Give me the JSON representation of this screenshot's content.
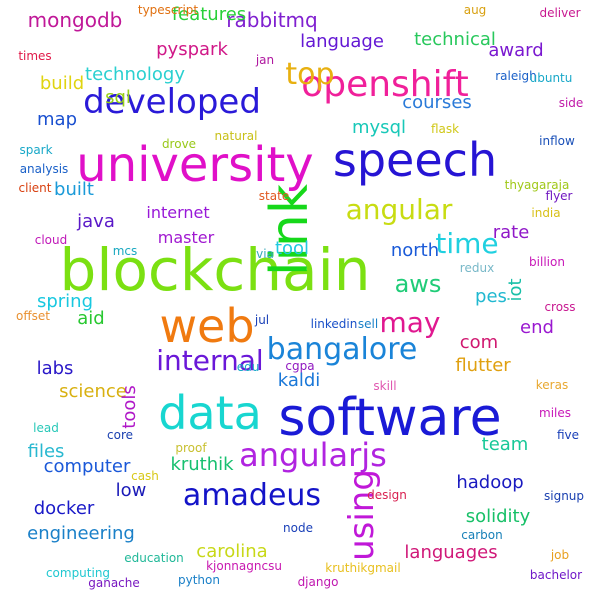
{
  "words": [
    {
      "text": "blockchain",
      "color": "#7be012"
    },
    {
      "text": "software",
      "color": "#1a1ad6"
    },
    {
      "text": "university",
      "color": "#e010c8"
    },
    {
      "text": "speech",
      "color": "#2614d4"
    },
    {
      "text": "link",
      "color": "#16d81a"
    },
    {
      "text": "data",
      "color": "#18d6d0"
    },
    {
      "text": "web",
      "color": "#f07a10"
    },
    {
      "text": "openshift",
      "color": "#f0209a"
    },
    {
      "text": "developed",
      "color": "#2a1ad8"
    },
    {
      "text": "angularjs",
      "color": "#b024e0"
    },
    {
      "text": "bangalore",
      "color": "#1a84d8"
    },
    {
      "text": "angular",
      "color": "#c8dc12"
    },
    {
      "text": "amadeus",
      "color": "#1414c8"
    },
    {
      "text": "internal",
      "color": "#6a18d8"
    },
    {
      "text": "may",
      "color": "#e01890"
    },
    {
      "text": "top",
      "color": "#e8b010"
    },
    {
      "text": "time",
      "color": "#20d0e0"
    },
    {
      "text": "using",
      "color": "#c018d8"
    },
    {
      "text": "aws",
      "color": "#20cc78"
    },
    {
      "text": "mongodb",
      "color": "#c01898"
    },
    {
      "text": "rabbitmq",
      "color": "#8020d0"
    },
    {
      "text": "features",
      "color": "#28d038"
    },
    {
      "text": "language",
      "color": "#6418d4"
    },
    {
      "text": "technical",
      "color": "#28c85c"
    },
    {
      "text": "award",
      "color": "#7a18d0"
    },
    {
      "text": "pyspark",
      "color": "#d01888"
    },
    {
      "text": "technology",
      "color": "#2ad0d0"
    },
    {
      "text": "build",
      "color": "#e0d410"
    },
    {
      "text": "sql",
      "color": "#98d018"
    },
    {
      "text": "map",
      "color": "#1a50d0"
    },
    {
      "text": "mysql",
      "color": "#18c8b8"
    },
    {
      "text": "courses",
      "color": "#2a7ad8"
    },
    {
      "text": "built",
      "color": "#1a9ad8"
    },
    {
      "text": "java",
      "color": "#5a18c8"
    },
    {
      "text": "internet",
      "color": "#9818d8"
    },
    {
      "text": "master",
      "color": "#a018d0"
    },
    {
      "text": "tool",
      "color": "#20c8e0"
    },
    {
      "text": "north",
      "color": "#1a5ad8"
    },
    {
      "text": "rate",
      "color": "#9018c8"
    },
    {
      "text": "iot",
      "color": "#18c0a8"
    },
    {
      "text": "pes",
      "color": "#20b8d0"
    },
    {
      "text": "spring",
      "color": "#18c8e0"
    },
    {
      "text": "aid",
      "color": "#28c830"
    },
    {
      "text": "end",
      "color": "#9a18d0"
    },
    {
      "text": "com",
      "color": "#d01870"
    },
    {
      "text": "labs",
      "color": "#2a18c8"
    },
    {
      "text": "kaldi",
      "color": "#1a78d8"
    },
    {
      "text": "flutter",
      "color": "#e0a010"
    },
    {
      "text": "science",
      "color": "#d8b010"
    },
    {
      "text": "tools",
      "color": "#b018c8"
    },
    {
      "text": "files",
      "color": "#28b8d0"
    },
    {
      "text": "computer",
      "color": "#1a58d8"
    },
    {
      "text": "kruthik",
      "color": "#18c070"
    },
    {
      "text": "team",
      "color": "#18c898"
    },
    {
      "text": "hadoop",
      "color": "#1a1ac0"
    },
    {
      "text": "low",
      "color": "#1a1ab8"
    },
    {
      "text": "docker",
      "color": "#1a1ac8"
    },
    {
      "text": "carolina",
      "color": "#c8d818"
    },
    {
      "text": "solidity",
      "color": "#18c068"
    },
    {
      "text": "engineering",
      "color": "#1a80c8"
    },
    {
      "text": "languages",
      "color": "#d01878"
    },
    {
      "text": "typescript",
      "color": "#e07010"
    },
    {
      "text": "aug",
      "color": "#d8a010"
    },
    {
      "text": "deliver",
      "color": "#c81890"
    },
    {
      "text": "times",
      "color": "#e01848"
    },
    {
      "text": "jan",
      "color": "#b018a0"
    },
    {
      "text": "raleigh",
      "color": "#1a60c8"
    },
    {
      "text": "ubuntu",
      "color": "#18a8c8"
    },
    {
      "text": "side",
      "color": "#c018a8"
    },
    {
      "text": "inflow",
      "color": "#1a50b8"
    },
    {
      "text": "flask",
      "color": "#d0c818"
    },
    {
      "text": "spark",
      "color": "#18a8c8"
    },
    {
      "text": "analysis",
      "color": "#1a60c8"
    },
    {
      "text": "client",
      "color": "#d84010"
    },
    {
      "text": "drove",
      "color": "#98c818"
    },
    {
      "text": "natural",
      "color": "#c8c018"
    },
    {
      "text": "state",
      "color": "#e05820"
    },
    {
      "text": "thyagaraja",
      "color": "#a0c818"
    },
    {
      "text": "flyer",
      "color": "#7018c0"
    },
    {
      "text": "india",
      "color": "#d8c018"
    },
    {
      "text": "cloud",
      "color": "#c018b8"
    },
    {
      "text": "mcs",
      "color": "#18a8c0"
    },
    {
      "text": "via",
      "color": "#38a8b8"
    },
    {
      "text": "redux",
      "color": "#78b8c8"
    },
    {
      "text": "billion",
      "color": "#c818b8"
    },
    {
      "text": "cross",
      "color": "#c81890"
    },
    {
      "text": "offset",
      "color": "#e89030"
    },
    {
      "text": "jul",
      "color": "#1a40b8"
    },
    {
      "text": "linkedin",
      "color": "#1a50c8"
    },
    {
      "text": "sell",
      "color": "#1a80c8"
    },
    {
      "text": "edu",
      "color": "#18a8c8"
    },
    {
      "text": "cgpa",
      "color": "#9018c0"
    },
    {
      "text": "skill",
      "color": "#e058b0"
    },
    {
      "text": "keras",
      "color": "#e8a830"
    },
    {
      "text": "lead",
      "color": "#28c8b8"
    },
    {
      "text": "core",
      "color": "#1a40b0"
    },
    {
      "text": "proof",
      "color": "#c8c030"
    },
    {
      "text": "miles",
      "color": "#c818b8"
    },
    {
      "text": "five",
      "color": "#1a40b8"
    },
    {
      "text": "cash",
      "color": "#d8c818"
    },
    {
      "text": "design",
      "color": "#d82050"
    },
    {
      "text": "signup",
      "color": "#1a40b0"
    },
    {
      "text": "node",
      "color": "#1a40b8"
    },
    {
      "text": "carbon",
      "color": "#1880b8"
    },
    {
      "text": "education",
      "color": "#20b898"
    },
    {
      "text": "kjonnagncsu",
      "color": "#c818b0"
    },
    {
      "text": "job",
      "color": "#e8a020"
    },
    {
      "text": "computing",
      "color": "#20c8d0"
    },
    {
      "text": "kruthikgmail",
      "color": "#e8c020"
    },
    {
      "text": "bachelor",
      "color": "#7018c8"
    },
    {
      "text": "ganache",
      "color": "#7818c0"
    },
    {
      "text": "python",
      "color": "#1a80c8"
    },
    {
      "text": "django",
      "color": "#c018b0"
    }
  ]
}
